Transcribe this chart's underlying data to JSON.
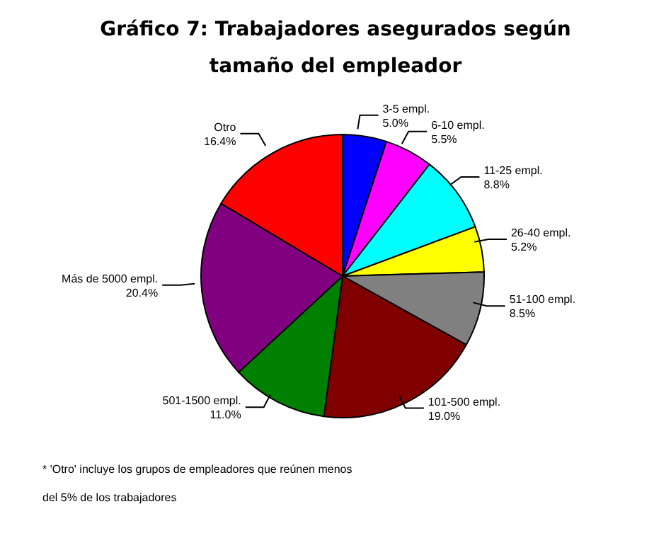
{
  "chart_data": {
    "type": "pie",
    "title": "Gráfico 7: Trabajadores asegurados según tamaño del empleador",
    "categories": [
      "3-5 empl.",
      "6-10 empl.",
      "11-25 empl.",
      "26-40 empl.",
      "51-100 empl.",
      "101-500 empl.",
      "501-1500 empl.",
      "Más de 5000 empl.",
      "Otro"
    ],
    "values": [
      5.0,
      5.5,
      8.8,
      5.2,
      8.5,
      19.0,
      11.0,
      20.4,
      16.4
    ],
    "value_labels": [
      "5.0%",
      "5.5%",
      "8.8%",
      "5.2%",
      "8.5%",
      "19.0%",
      "11.0%",
      "20.4%",
      "16.4%"
    ],
    "colors": [
      "#0000ff",
      "#ff00ff",
      "#00ffff",
      "#ffff00",
      "#808080",
      "#800000",
      "#008000",
      "#800080",
      "#ff0000"
    ],
    "annotations": [
      "* 'Otro' incluye los grupos de empleadores que reúnen menos del 5% de los trabajadores"
    ],
    "legend": false
  }
}
